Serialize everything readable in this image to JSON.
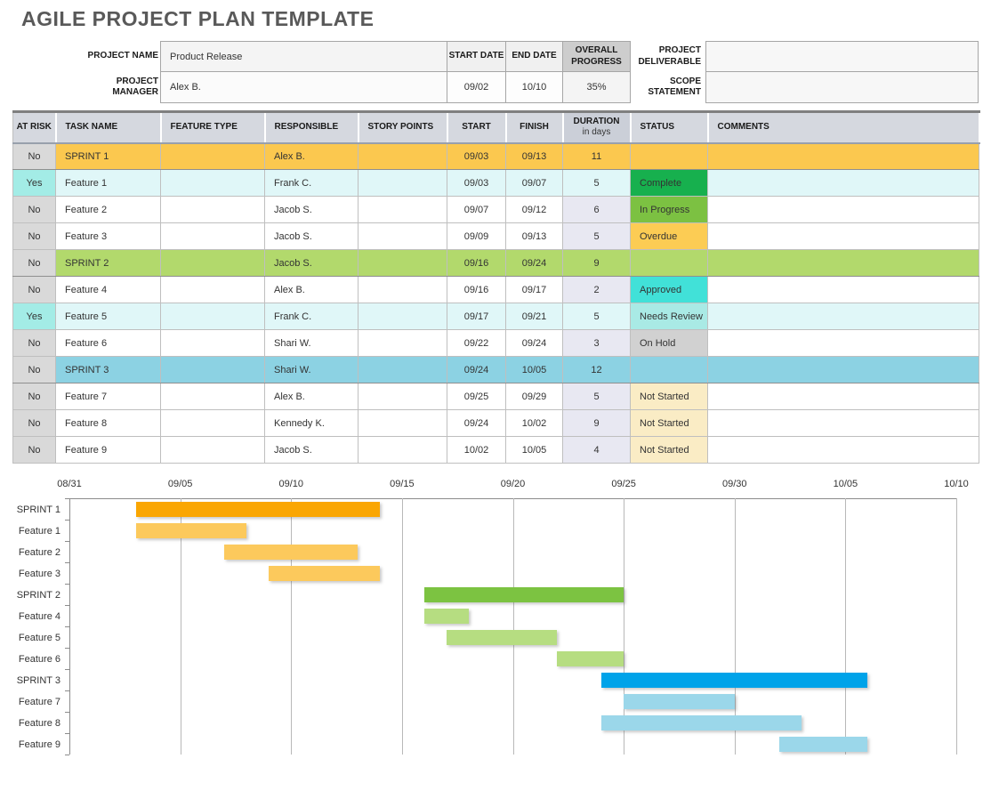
{
  "title": "AGILE PROJECT PLAN TEMPLATE",
  "info": {
    "project_name_label": "PROJECT NAME",
    "project_name": "Product Release",
    "project_manager_label": "PROJECT MANAGER",
    "project_manager": "Alex B.",
    "start_date_label": "START DATE",
    "start_date": "09/02",
    "end_date_label": "END DATE",
    "end_date": "10/10",
    "overall_progress_label": "OVERALL PROGRESS",
    "overall_progress": "35%",
    "project_deliverable_label": "PROJECT DELIVERABLE",
    "project_deliverable": "",
    "scope_statement_label": "SCOPE STATEMENT",
    "scope_statement": ""
  },
  "table": {
    "columns": [
      "AT RISK",
      "TASK NAME",
      "FEATURE TYPE",
      "RESPONSIBLE",
      "STORY POINTS",
      "START",
      "FINISH",
      "DURATION",
      "STATUS",
      "COMMENTS"
    ],
    "duration_subline": "in days",
    "rows": [
      {
        "at_risk": "No",
        "task": "SPRINT 1",
        "feature_type": "",
        "responsible": "Alex B.",
        "story_points": "",
        "start": "09/03",
        "finish": "09/13",
        "duration": "11",
        "status": "",
        "comments": "",
        "type": "sprint1"
      },
      {
        "at_risk": "Yes",
        "task": "Feature 1",
        "feature_type": "",
        "responsible": "Frank C.",
        "story_points": "",
        "start": "09/03",
        "finish": "09/07",
        "duration": "5",
        "status": "Complete",
        "comments": "",
        "type": "feature"
      },
      {
        "at_risk": "No",
        "task": "Feature 2",
        "feature_type": "",
        "responsible": "Jacob S.",
        "story_points": "",
        "start": "09/07",
        "finish": "09/12",
        "duration": "6",
        "status": "In Progress",
        "comments": "",
        "type": "feature"
      },
      {
        "at_risk": "No",
        "task": "Feature 3",
        "feature_type": "",
        "responsible": "Jacob S.",
        "story_points": "",
        "start": "09/09",
        "finish": "09/13",
        "duration": "5",
        "status": "Overdue",
        "comments": "",
        "type": "feature"
      },
      {
        "at_risk": "No",
        "task": "SPRINT 2",
        "feature_type": "",
        "responsible": "Jacob S.",
        "story_points": "",
        "start": "09/16",
        "finish": "09/24",
        "duration": "9",
        "status": "",
        "comments": "",
        "type": "sprint2"
      },
      {
        "at_risk": "No",
        "task": "Feature 4",
        "feature_type": "",
        "responsible": "Alex B.",
        "story_points": "",
        "start": "09/16",
        "finish": "09/17",
        "duration": "2",
        "status": "Approved",
        "comments": "",
        "type": "feature"
      },
      {
        "at_risk": "Yes",
        "task": "Feature 5",
        "feature_type": "",
        "responsible": "Frank C.",
        "story_points": "",
        "start": "09/17",
        "finish": "09/21",
        "duration": "5",
        "status": "Needs Review",
        "comments": "",
        "type": "feature"
      },
      {
        "at_risk": "No",
        "task": "Feature 6",
        "feature_type": "",
        "responsible": "Shari W.",
        "story_points": "",
        "start": "09/22",
        "finish": "09/24",
        "duration": "3",
        "status": "On Hold",
        "comments": "",
        "type": "feature"
      },
      {
        "at_risk": "No",
        "task": "SPRINT 3",
        "feature_type": "",
        "responsible": "Shari W.",
        "story_points": "",
        "start": "09/24",
        "finish": "10/05",
        "duration": "12",
        "status": "",
        "comments": "",
        "type": "sprint3"
      },
      {
        "at_risk": "No",
        "task": "Feature 7",
        "feature_type": "",
        "responsible": "Alex B.",
        "story_points": "",
        "start": "09/25",
        "finish": "09/29",
        "duration": "5",
        "status": "Not Started",
        "comments": "",
        "type": "feature"
      },
      {
        "at_risk": "No",
        "task": "Feature 8",
        "feature_type": "",
        "responsible": "Kennedy K.",
        "story_points": "",
        "start": "09/24",
        "finish": "10/02",
        "duration": "9",
        "status": "Not Started",
        "comments": "",
        "type": "feature"
      },
      {
        "at_risk": "No",
        "task": "Feature 9",
        "feature_type": "",
        "responsible": "Jacob S.",
        "story_points": "",
        "start": "10/02",
        "finish": "10/05",
        "duration": "4",
        "status": "Not Started",
        "comments": "",
        "type": "feature"
      }
    ]
  },
  "row_colors": {
    "sprint1": "#FBC84F",
    "sprint2": "#B2D96C",
    "sprint3": "#8CD2E3",
    "risk_row": "#E0F7F8",
    "at_risk_yes": "#A3ECE6",
    "at_risk_no": "#D9D9D9",
    "duration_cell": "#E8E8F2",
    "plain_row": "#FFFFFF"
  },
  "status_colors": {
    "Complete": "#17B04E",
    "In Progress": "#7CC142",
    "Overdue": "#FCCC54",
    "Approved": "#41E1D8",
    "Needs Review": "#A9EAE5",
    "On Hold": "#D1D1D1",
    "Not Started": "#FAECC5"
  },
  "chart_data": {
    "type": "gantt",
    "x_ticks": [
      "08/31",
      "09/05",
      "09/10",
      "09/15",
      "09/20",
      "09/25",
      "09/30",
      "10/05",
      "10/10"
    ],
    "x_range_days": 40,
    "tasks": [
      {
        "label": "SPRINT 1",
        "start": "09/03",
        "finish": "09/13",
        "duration_days": 11,
        "color": "#FAA602"
      },
      {
        "label": "Feature 1",
        "start": "09/03",
        "finish": "09/07",
        "duration_days": 5,
        "color": "#FCC95C"
      },
      {
        "label": "Feature 2",
        "start": "09/07",
        "finish": "09/12",
        "duration_days": 6,
        "color": "#FCC95C"
      },
      {
        "label": "Feature 3",
        "start": "09/09",
        "finish": "09/13",
        "duration_days": 5,
        "color": "#FCC95C"
      },
      {
        "label": "SPRINT 2",
        "start": "09/16",
        "finish": "09/24",
        "duration_days": 9,
        "color": "#7CC341"
      },
      {
        "label": "Feature 4",
        "start": "09/16",
        "finish": "09/17",
        "duration_days": 2,
        "color": "#B6DD81"
      },
      {
        "label": "Feature 5",
        "start": "09/17",
        "finish": "09/21",
        "duration_days": 5,
        "color": "#B6DD81"
      },
      {
        "label": "Feature 6",
        "start": "09/22",
        "finish": "09/24",
        "duration_days": 3,
        "color": "#B6DD81"
      },
      {
        "label": "SPRINT 3",
        "start": "09/24",
        "finish": "10/05",
        "duration_days": 12,
        "color": "#00A3E9"
      },
      {
        "label": "Feature 7",
        "start": "09/25",
        "finish": "09/29",
        "duration_days": 5,
        "color": "#9BD7EA"
      },
      {
        "label": "Feature 8",
        "start": "09/24",
        "finish": "10/02",
        "duration_days": 9,
        "color": "#9BD7EA"
      },
      {
        "label": "Feature 9",
        "start": "10/02",
        "finish": "10/05",
        "duration_days": 4,
        "color": "#9BD7EA"
      }
    ]
  }
}
